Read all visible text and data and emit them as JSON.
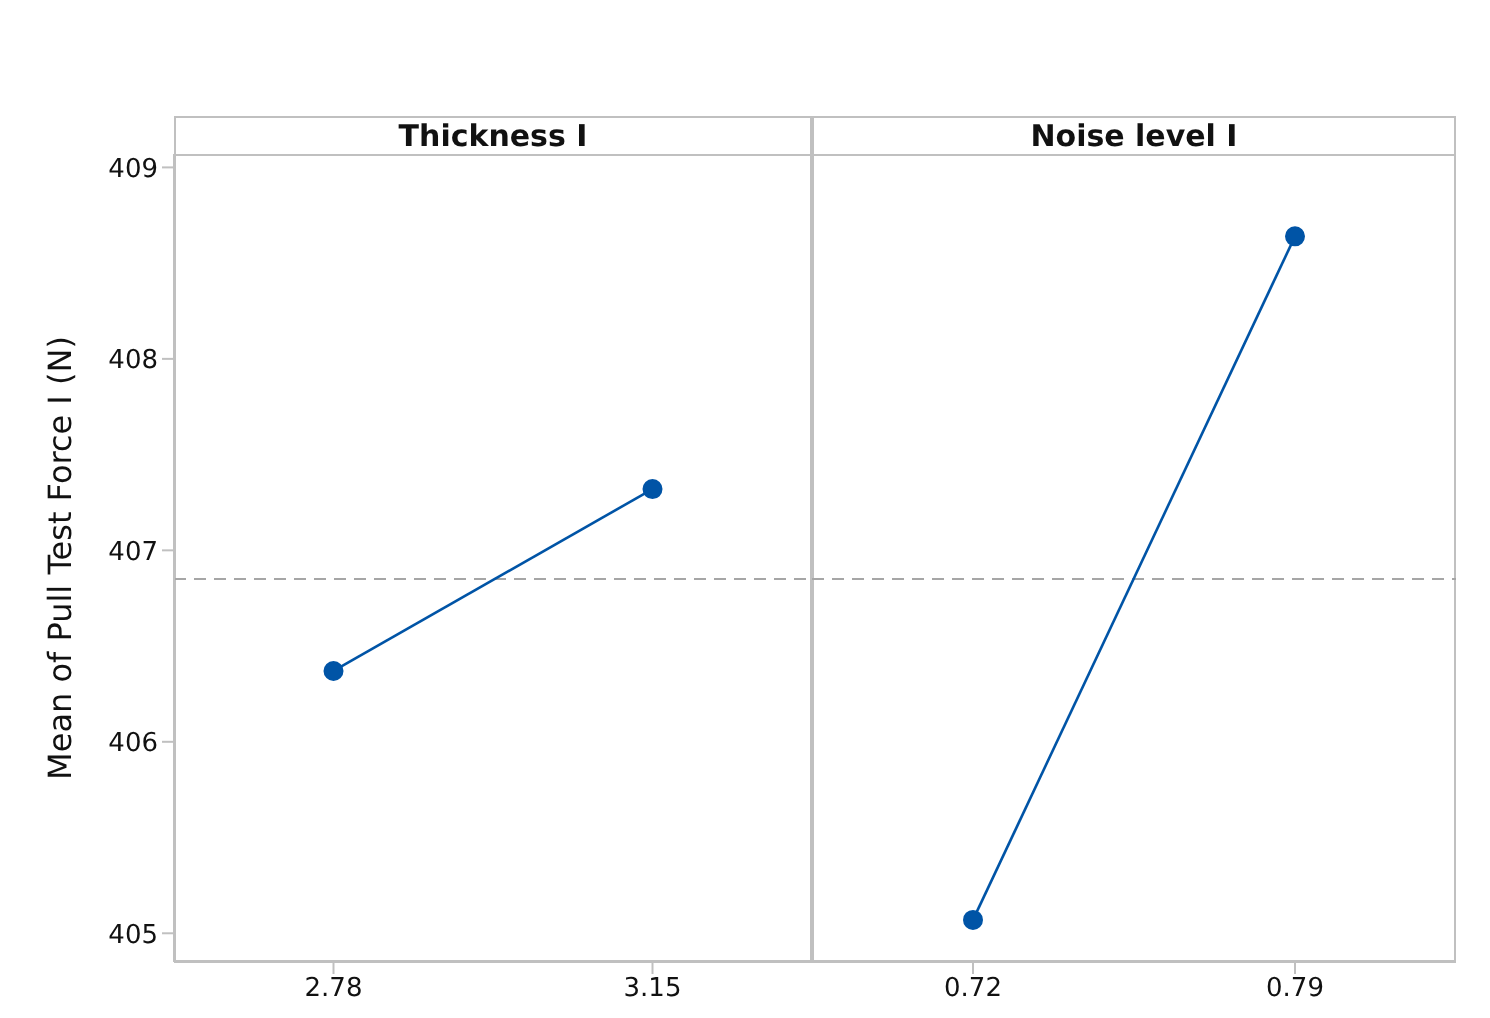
{
  "chart_data": [
    {
      "type": "line",
      "title": "Thickness I",
      "ylabel": "Mean of Pull Test Force I (N)",
      "categories": [
        "2.78",
        "3.15"
      ],
      "series": [
        {
          "color": "#0054a6",
          "values": [
            406.37,
            407.32
          ]
        }
      ],
      "ylim": [
        404.85,
        409.07
      ],
      "yticks": [
        405,
        406,
        407,
        408,
        409
      ],
      "marker": "circle",
      "line_style": "solid",
      "ref_lines": [
        {
          "axis": "y",
          "value": 406.85,
          "color": "#a6a6a6",
          "line_style": "dashed"
        }
      ]
    },
    {
      "type": "line",
      "title": "Noise level I",
      "categories": [
        "0.72",
        "0.79"
      ],
      "series": [
        {
          "color": "#0054a6",
          "values": [
            405.07,
            408.64
          ]
        }
      ],
      "ylim": [
        404.85,
        409.07
      ],
      "yticks": [
        405,
        406,
        407,
        408,
        409
      ],
      "marker": "circle",
      "line_style": "solid",
      "tick_labels": "x",
      "ref_lines": [
        {
          "axis": "y",
          "value": 406.85,
          "color": "#a6a6a6",
          "line_style": "dashed"
        }
      ]
    }
  ]
}
